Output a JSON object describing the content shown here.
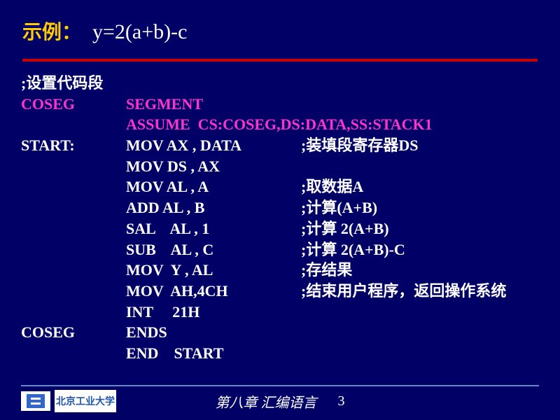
{
  "header": {
    "label": "示例：",
    "formula": "y=2(a+b)-c"
  },
  "lines": [
    {
      "label": ";设置代码段",
      "labelCls": "white",
      "op": "",
      "opCls": "",
      "cmt": ""
    },
    {
      "label": "COSEG",
      "labelCls": "magenta",
      "op": "SEGMENT",
      "opCls": "magenta",
      "cmt": ""
    },
    {
      "label": "",
      "labelCls": "white",
      "op": "ASSUME  CS:COSEG,DS:DATA,SS:STACK1",
      "opCls": "magenta",
      "cmt": ""
    },
    {
      "label": "START:",
      "labelCls": "white",
      "op": "MOV AX , DATA",
      "opCls": "white",
      "cmt": ";装填段寄存器DS"
    },
    {
      "label": "",
      "labelCls": "white",
      "op": "MOV DS , AX",
      "opCls": "white",
      "cmt": ""
    },
    {
      "label": "",
      "labelCls": "white",
      "op": "MOV AL , A",
      "opCls": "white",
      "cmt": ";取数据A"
    },
    {
      "label": "",
      "labelCls": "white",
      "op": "ADD AL , B",
      "opCls": "white",
      "cmt": ";计算(A+B)"
    },
    {
      "label": "",
      "labelCls": "white",
      "op": "SAL    AL , 1",
      "opCls": "white",
      "cmt": ";计算 2(A+B)"
    },
    {
      "label": "",
      "labelCls": "white",
      "op": "SUB    AL , C",
      "opCls": "white",
      "cmt": ";计算 2(A+B)-C"
    },
    {
      "label": "",
      "labelCls": "white",
      "op": "MOV  Y , AL",
      "opCls": "white",
      "cmt": ";存结果"
    },
    {
      "label": "",
      "labelCls": "white",
      "op": "MOV  AH,4CH",
      "opCls": "white",
      "cmt": ";结束用户程序，返回操作系统"
    },
    {
      "label": "",
      "labelCls": "white",
      "op": "INT     21H",
      "opCls": "white",
      "cmt": ""
    },
    {
      "label": "COSEG",
      "labelCls": "white",
      "op": "ENDS",
      "opCls": "white",
      "cmt": ""
    },
    {
      "label": "",
      "labelCls": "white",
      "op": "END    START",
      "opCls": "white",
      "cmt": ""
    }
  ],
  "footer": {
    "logoText": "北京工业大学",
    "chapter": "第八章  汇编语言",
    "page": "3"
  },
  "colors": {
    "background": "#000066",
    "accent": "#ffcc00",
    "rule": "#cc0000",
    "magenta": "#ff33cc",
    "white": "#ffffff"
  }
}
